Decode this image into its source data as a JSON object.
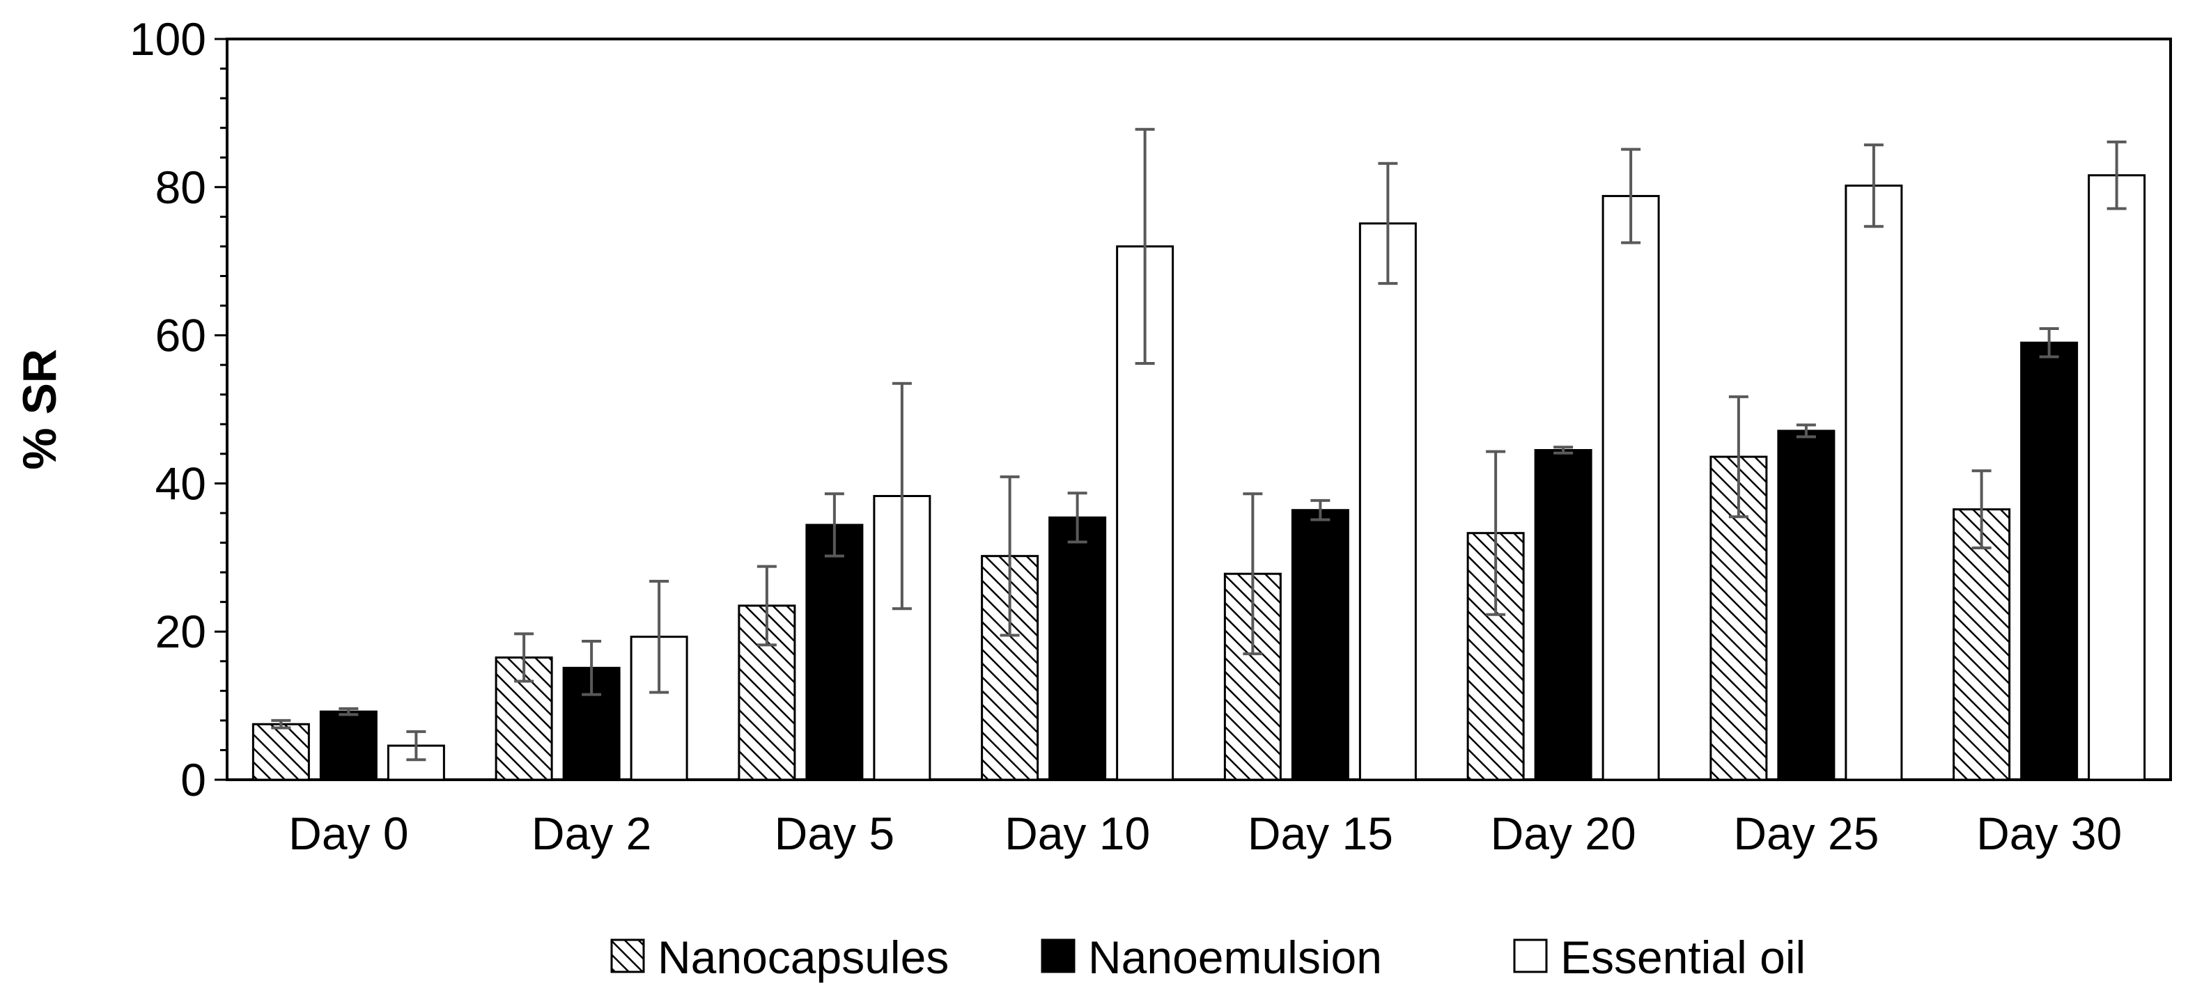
{
  "chart_data": {
    "type": "bar",
    "title": "",
    "xlabel": "",
    "ylabel": "% SR",
    "ylim": [
      0,
      100
    ],
    "yticks": [
      0,
      20,
      40,
      60,
      80,
      100
    ],
    "ytick_labels": [
      "0",
      "20",
      "40",
      "60",
      "80",
      "100"
    ],
    "grid": false,
    "legend_position": "bottom-center",
    "categories": [
      "Day 0",
      "Day 2",
      "Day 5",
      "Day 10",
      "Day 15",
      "Day 20",
      "Day 25",
      "Day 30"
    ],
    "series": [
      {
        "name": "Nanocapsules",
        "style": "hatched",
        "values": [
          7.5,
          16.5,
          23.5,
          30.2,
          27.8,
          33.3,
          43.6,
          36.5
        ],
        "errors": [
          0.5,
          3.2,
          5.3,
          10.7,
          10.8,
          11.0,
          8.1,
          5.2
        ]
      },
      {
        "name": "Nanoemulsion",
        "style": "solid-black",
        "values": [
          9.2,
          15.1,
          34.4,
          35.4,
          36.4,
          44.5,
          47.1,
          59.0
        ],
        "errors": [
          0.4,
          3.6,
          4.2,
          3.3,
          1.3,
          0.4,
          0.8,
          1.9
        ]
      },
      {
        "name": "Essential oil",
        "style": "white",
        "values": [
          4.6,
          19.3,
          38.3,
          72.0,
          75.1,
          78.8,
          80.2,
          81.6
        ],
        "errors": [
          1.9,
          7.5,
          15.2,
          15.8,
          8.1,
          6.3,
          5.5,
          4.5
        ]
      }
    ]
  },
  "colors": {
    "bar_solid": "#000000",
    "bar_white": "#ffffff",
    "hatch_stroke": "#000000",
    "error_bar": "#595959",
    "axis": "#000000"
  }
}
